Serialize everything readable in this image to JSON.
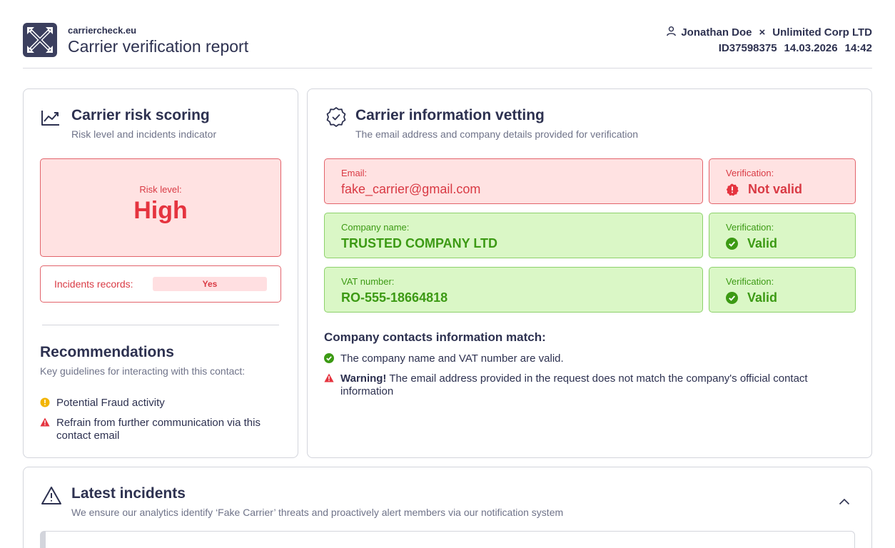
{
  "header": {
    "domain": "carriercheck.eu",
    "title": "Carrier verification report",
    "user": "Jonathan Doe",
    "separator": "×",
    "company": "Unlimited Corp LTD",
    "id": "ID37598375",
    "date": "14.03.2026",
    "time": "14:42"
  },
  "risk_card": {
    "title": "Carrier risk scoring",
    "subtitle": "Risk level and incidents indicator",
    "risk_label": "Risk level:",
    "risk_value": "High",
    "incidents_label": "Incidents records:",
    "incidents_value": "Yes",
    "rec_title": "Recommendations",
    "rec_subtitle": "Key guidelines for interacting with this contact:",
    "rec_items": [
      {
        "icon": "warning-circle-icon",
        "text": "Potential Fraud activity"
      },
      {
        "icon": "alert-triangle-icon",
        "text": "Refrain from further communication via this contact email"
      }
    ]
  },
  "vetting_card": {
    "title": "Carrier information vetting",
    "subtitle": "The email address and company details provided for verification",
    "fields": [
      {
        "label": "Email:",
        "value": "fake_carrier@gmail.com",
        "status": "invalid",
        "ver_label": "Verification:",
        "ver_value": "Not valid"
      },
      {
        "label": "Company name:",
        "value": "TRUSTED COMPANY LTD",
        "status": "valid",
        "ver_label": "Verification:",
        "ver_value": "Valid"
      },
      {
        "label": "VAT number:",
        "value": "RO-555-18664818",
        "status": "valid",
        "ver_label": "Verification:",
        "ver_value": "Valid"
      }
    ],
    "match_title": "Company contacts information match:",
    "match_items": [
      {
        "icon": "check-circle-icon",
        "bold": "",
        "text": "The company name and VAT number are valid."
      },
      {
        "icon": "alert-triangle-icon",
        "bold": "Warning!",
        "text": "The email address provided in the request does not match the company's official contact information"
      }
    ]
  },
  "incidents_card": {
    "title": "Latest incidents",
    "subtitle": "We ensure our analytics identify ‘Fake Carrier’ threats and proactively alert members via our notification system"
  },
  "colors": {
    "primary_text": "#2d3150",
    "danger": "#e5343f",
    "success": "#3c9a14",
    "danger_bg": "#ffe2e2",
    "success_bg": "#daf7c6",
    "warning": "#f2b400"
  }
}
